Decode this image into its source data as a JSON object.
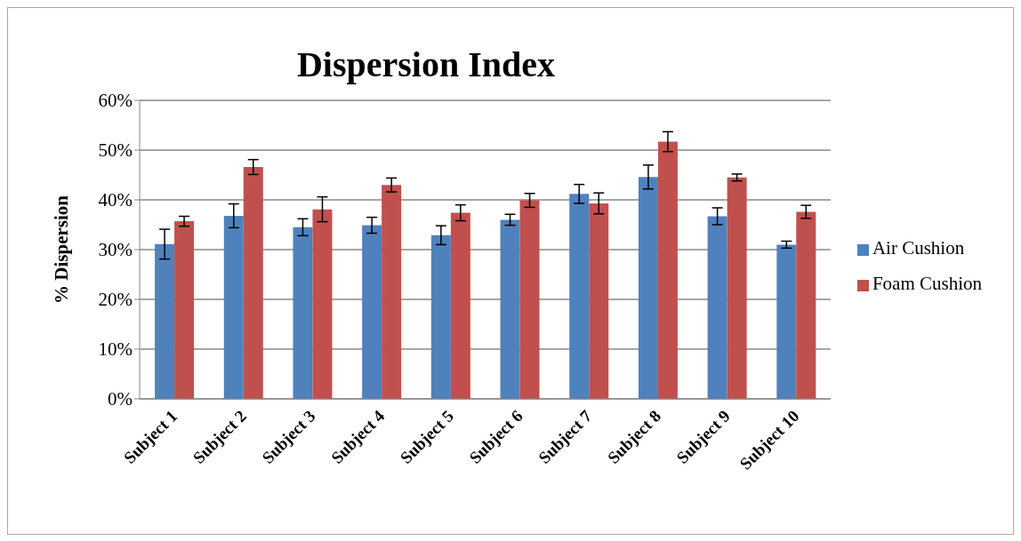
{
  "chart_data": {
    "type": "bar",
    "title": "Dispersion Index",
    "ylabel": "% Dispersion",
    "categories": [
      "Subject 1",
      "Subject 2",
      "Subject 3",
      "Subject 4",
      "Subject 5",
      "Subject 6",
      "Subject 7",
      "Subject 8",
      "Subject 9",
      "Subject 10"
    ],
    "series": [
      {
        "name": "Air Cushion",
        "color": "#4f81bd",
        "values": [
          31.1,
          36.8,
          34.5,
          34.9,
          32.9,
          36.0,
          41.2,
          44.6,
          36.7,
          31.0
        ],
        "errors": [
          3.0,
          2.4,
          1.7,
          1.6,
          1.9,
          1.1,
          1.9,
          2.4,
          1.7,
          0.7
        ]
      },
      {
        "name": "Foam Cushion",
        "color": "#c0504d",
        "values": [
          35.7,
          46.6,
          38.1,
          43.0,
          37.4,
          39.9,
          39.3,
          51.7,
          44.5,
          37.6
        ],
        "errors": [
          1.0,
          1.5,
          2.5,
          1.4,
          1.6,
          1.4,
          2.1,
          2.0,
          0.7,
          1.3
        ]
      }
    ],
    "ylim": [
      0,
      60
    ],
    "yticks": [
      {
        "value": 0,
        "label": "0%"
      },
      {
        "value": 10,
        "label": "10%"
      },
      {
        "value": 20,
        "label": "20%"
      },
      {
        "value": 30,
        "label": "30%"
      },
      {
        "value": 40,
        "label": "40%"
      },
      {
        "value": 50,
        "label": "50%"
      },
      {
        "value": 60,
        "label": "60%"
      }
    ],
    "grid": "y",
    "legend": "right"
  }
}
